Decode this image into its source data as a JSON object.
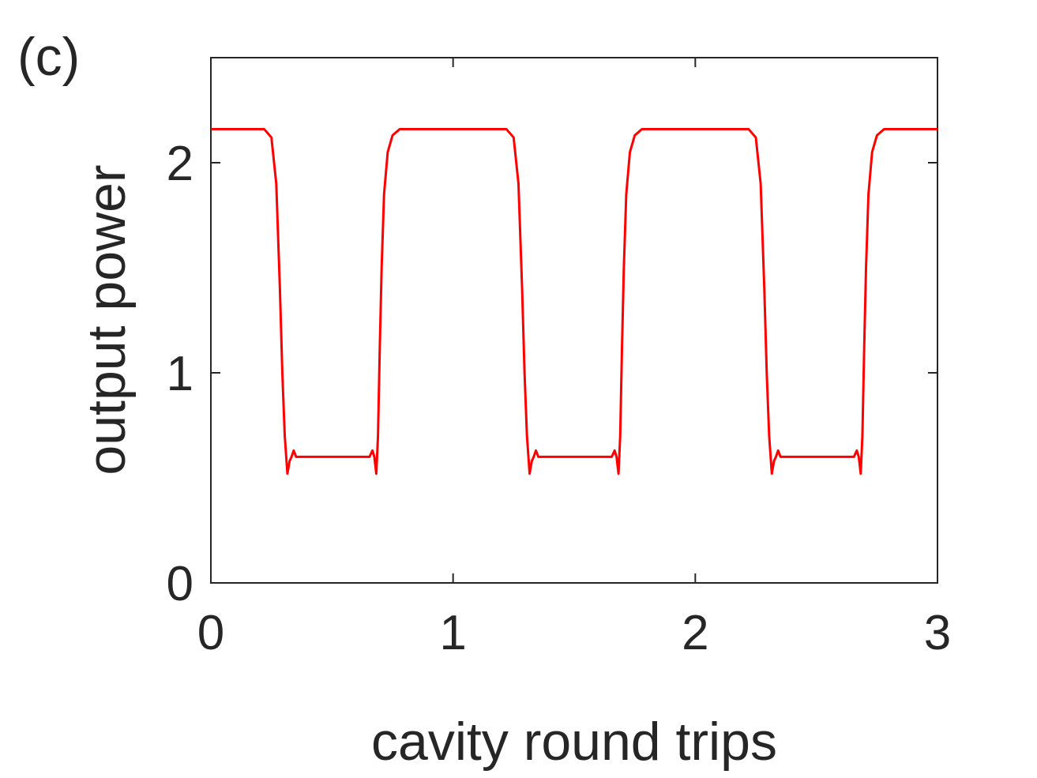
{
  "chart_data": {
    "type": "line",
    "panel_label": "(c)",
    "x_label": "cavity round trips",
    "y_label": "output power",
    "x": [
      0,
      0.22,
      0.25,
      0.27,
      0.285,
      0.295,
      0.305,
      0.316,
      0.325,
      0.333,
      0.342,
      0.352,
      0.45,
      0.55,
      0.655,
      0.667,
      0.675,
      0.683,
      0.69,
      0.697,
      0.705,
      0.715,
      0.73,
      0.75,
      0.78,
      0.9,
      1.22,
      1.25,
      1.27,
      1.285,
      1.295,
      1.305,
      1.316,
      1.325,
      1.333,
      1.342,
      1.352,
      1.45,
      1.55,
      1.655,
      1.667,
      1.675,
      1.683,
      1.69,
      1.697,
      1.705,
      1.715,
      1.73,
      1.75,
      1.78,
      1.9,
      2.22,
      2.25,
      2.27,
      2.285,
      2.295,
      2.305,
      2.316,
      2.325,
      2.333,
      2.342,
      2.352,
      2.45,
      2.55,
      2.655,
      2.667,
      2.675,
      2.683,
      2.69,
      2.697,
      2.705,
      2.715,
      2.73,
      2.75,
      2.78,
      2.9,
      3
    ],
    "series": [
      {
        "color": "#ff0000",
        "values": [
          2.16,
          2.16,
          2.12,
          1.9,
          1.4,
          1.0,
          0.7,
          0.52,
          0.58,
          0.6,
          0.63,
          0.6,
          0.6,
          0.6,
          0.6,
          0.63,
          0.6,
          0.52,
          0.7,
          1.1,
          1.5,
          1.85,
          2.05,
          2.13,
          2.16,
          2.16,
          2.16,
          2.12,
          1.9,
          1.4,
          1.0,
          0.7,
          0.52,
          0.58,
          0.6,
          0.63,
          0.6,
          0.6,
          0.6,
          0.6,
          0.63,
          0.6,
          0.52,
          0.7,
          1.1,
          1.5,
          1.85,
          2.05,
          2.13,
          2.16,
          2.16,
          2.16,
          2.12,
          1.9,
          1.4,
          1.0,
          0.7,
          0.52,
          0.58,
          0.6,
          0.63,
          0.6,
          0.6,
          0.6,
          0.6,
          0.63,
          0.6,
          0.52,
          0.7,
          1.1,
          1.5,
          1.85,
          2.05,
          2.13,
          2.16,
          2.16,
          2.16
        ]
      }
    ],
    "xlim": [
      0,
      3
    ],
    "xticks": [
      0,
      1,
      2,
      3
    ],
    "ylim": [
      0,
      2.5
    ],
    "yticks": [
      0,
      1,
      2
    ]
  }
}
